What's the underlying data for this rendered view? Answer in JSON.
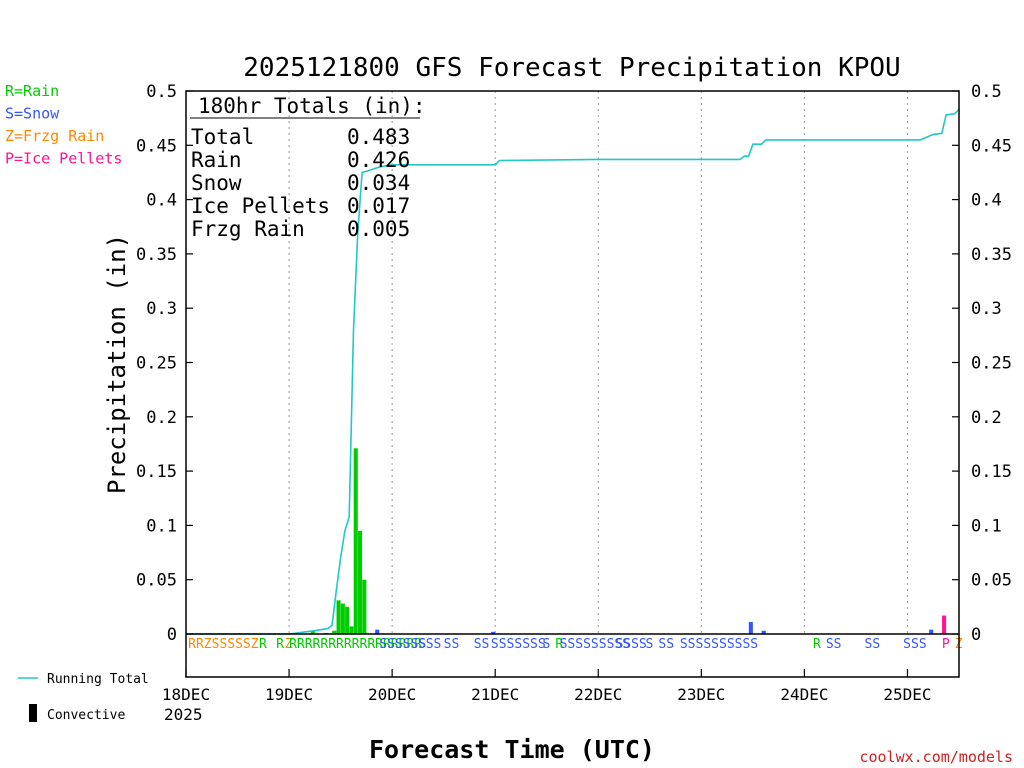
{
  "chart_data": {
    "type": "bar",
    "title": "2025121800 GFS Forecast Precipitation KPOU",
    "xlabel": "Forecast Time (UTC)",
    "ylabel": "Precipitation (in)",
    "ylim": [
      0,
      0.5
    ],
    "y_ticks": [
      "0",
      "0.05",
      "0.1",
      "0.15",
      "0.2",
      "0.25",
      "0.3",
      "0.35",
      "0.4",
      "0.45",
      "0.5"
    ],
    "xlim_hours": [
      0,
      180
    ],
    "x_ticks": [
      {
        "hour": 0,
        "label": "18DEC",
        "sublabel": "2025"
      },
      {
        "hour": 24,
        "label": "19DEC",
        "sublabel": ""
      },
      {
        "hour": 48,
        "label": "20DEC",
        "sublabel": ""
      },
      {
        "hour": 72,
        "label": "21DEC",
        "sublabel": ""
      },
      {
        "hour": 96,
        "label": "22DEC",
        "sublabel": ""
      },
      {
        "hour": 120,
        "label": "23DEC",
        "sublabel": ""
      },
      {
        "hour": 144,
        "label": "24DEC",
        "sublabel": ""
      },
      {
        "hour": 168,
        "label": "25DEC",
        "sublabel": ""
      }
    ],
    "precip_type_legend": [
      {
        "label": "R=Rain",
        "color": "#00cc00"
      },
      {
        "label": "S=Snow",
        "color": "#3355ff"
      },
      {
        "label": "Z=Frzg Rain",
        "color": "#ff8800"
      },
      {
        "label": "P=Ice Pellets",
        "color": "#ff1493"
      }
    ],
    "totals_box": {
      "header": "180hr Totals (in):",
      "rows": [
        {
          "label": "Total",
          "value": "0.483"
        },
        {
          "label": "Rain",
          "value": "0.426"
        },
        {
          "label": "Snow",
          "value": "0.034"
        },
        {
          "label": "Ice Pellets",
          "value": "0.017"
        },
        {
          "label": "Frzg Rain",
          "value": "0.005"
        }
      ]
    },
    "series": [
      {
        "name": "Precipitation per period",
        "kind": "bar",
        "points": [
          {
            "hour": 30,
            "value": 0.003,
            "type": "R"
          },
          {
            "hour": 33,
            "value": 0.001,
            "type": "R"
          },
          {
            "hour": 35,
            "value": 0.003,
            "type": "R"
          },
          {
            "hour": 36,
            "value": 0.031,
            "type": "R"
          },
          {
            "hour": 37,
            "value": 0.028,
            "type": "R"
          },
          {
            "hour": 38,
            "value": 0.025,
            "type": "R"
          },
          {
            "hour": 39,
            "value": 0.007,
            "type": "R"
          },
          {
            "hour": 40,
            "value": 0.171,
            "type": "R"
          },
          {
            "hour": 41,
            "value": 0.095,
            "type": "R"
          },
          {
            "hour": 42,
            "value": 0.05,
            "type": "R"
          },
          {
            "hour": 45,
            "value": 0.004,
            "type": "S"
          },
          {
            "hour": 72,
            "value": 0.002,
            "type": "S"
          },
          {
            "hour": 132,
            "value": 0.011,
            "type": "S"
          },
          {
            "hour": 135,
            "value": 0.003,
            "type": "S"
          },
          {
            "hour": 174,
            "value": 0.004,
            "type": "S"
          },
          {
            "hour": 177,
            "value": 0.017,
            "type": "P"
          }
        ]
      },
      {
        "name": "Running Total",
        "kind": "line",
        "color": "#20c8c8",
        "points": [
          {
            "hour": 0,
            "value": 0
          },
          {
            "hour": 24,
            "value": 0
          },
          {
            "hour": 30,
            "value": 0.003
          },
          {
            "hour": 33,
            "value": 0.005
          },
          {
            "hour": 34,
            "value": 0.008
          },
          {
            "hour": 35,
            "value": 0.04
          },
          {
            "hour": 36,
            "value": 0.07
          },
          {
            "hour": 37,
            "value": 0.095
          },
          {
            "hour": 38,
            "value": 0.108
          },
          {
            "hour": 39,
            "value": 0.28
          },
          {
            "hour": 40,
            "value": 0.37
          },
          {
            "hour": 41,
            "value": 0.425
          },
          {
            "hour": 42,
            "value": 0.426
          },
          {
            "hour": 45,
            "value": 0.43
          },
          {
            "hour": 48,
            "value": 0.432
          },
          {
            "hour": 72,
            "value": 0.432
          },
          {
            "hour": 73,
            "value": 0.436
          },
          {
            "hour": 96,
            "value": 0.437
          },
          {
            "hour": 129,
            "value": 0.437
          },
          {
            "hour": 130,
            "value": 0.44
          },
          {
            "hour": 131,
            "value": 0.44
          },
          {
            "hour": 132,
            "value": 0.451
          },
          {
            "hour": 134,
            "value": 0.451
          },
          {
            "hour": 135,
            "value": 0.455
          },
          {
            "hour": 171,
            "value": 0.455
          },
          {
            "hour": 174,
            "value": 0.46
          },
          {
            "hour": 176,
            "value": 0.461
          },
          {
            "hour": 177,
            "value": 0.478
          },
          {
            "hour": 179,
            "value": 0.479
          },
          {
            "hour": 180,
            "value": 0.483
          }
        ]
      }
    ],
    "precip_type_strip": [
      {
        "hour": 0.5,
        "label": "RRZSSSSSZ",
        "type": "Z"
      },
      {
        "hour": 17,
        "label": "R",
        "type": "R"
      },
      {
        "hour": 21,
        "label": "R",
        "type": "R"
      },
      {
        "hour": 23,
        "label": "Z",
        "type": "Z"
      },
      {
        "hour": 24,
        "label": "RRRRRRRRRRRRRRRRR",
        "type": "R"
      },
      {
        "hour": 45,
        "label": "SSSSSS",
        "type": "S"
      },
      {
        "hour": 54,
        "label": "SSS",
        "type": "S"
      },
      {
        "hour": 60,
        "label": "SS",
        "type": "S"
      },
      {
        "hour": 67,
        "label": "SS",
        "type": "S"
      },
      {
        "hour": 71,
        "label": "SSSSSSS",
        "type": "S"
      },
      {
        "hour": 83,
        "label": "S",
        "type": "S"
      },
      {
        "hour": 86,
        "label": "R",
        "type": "R"
      },
      {
        "hour": 87,
        "label": "SSSSSSSSS",
        "type": "S"
      },
      {
        "hour": 100,
        "label": "SSSS",
        "type": "S"
      },
      {
        "hour": 107,
        "label": "S",
        "type": "S"
      },
      {
        "hour": 110,
        "label": "SS",
        "type": "S"
      },
      {
        "hour": 115,
        "label": "SSSSSSSSSS",
        "type": "S"
      },
      {
        "hour": 146,
        "label": "R",
        "type": "R"
      },
      {
        "hour": 149,
        "label": "SS",
        "type": "S"
      },
      {
        "hour": 158,
        "label": "SS",
        "type": "S"
      },
      {
        "hour": 167,
        "label": "SSS",
        "type": "S"
      },
      {
        "hour": 176,
        "label": "P",
        "type": "P"
      },
      {
        "hour": 179,
        "label": "Z",
        "type": "Z"
      }
    ],
    "bottom_legend": {
      "running_total": "Running Total",
      "convective": "Convective"
    },
    "credit": "coolwx.com/models"
  }
}
